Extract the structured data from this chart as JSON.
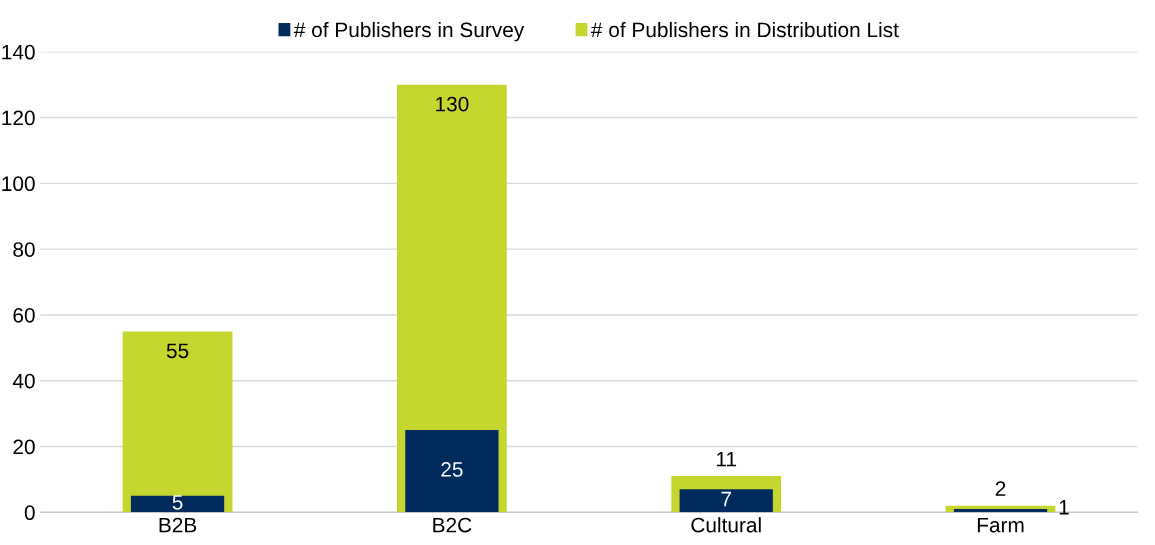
{
  "chart_data": {
    "type": "bar",
    "categories": [
      "B2B",
      "B2C",
      "Cultural",
      "Farm"
    ],
    "series": [
      {
        "name": "# of Publishers in Survey",
        "color": "#002b5c",
        "values": [
          5,
          25,
          7,
          1
        ]
      },
      {
        "name": "# of Publishers in Distribution List",
        "color": "#c5d62f",
        "values": [
          55,
          130,
          11,
          2
        ]
      }
    ],
    "ylim": [
      0,
      140
    ],
    "yticks": [
      0,
      20,
      40,
      60,
      80,
      100,
      120,
      140
    ],
    "grid": "y",
    "legend": "top",
    "data_labels": true
  }
}
